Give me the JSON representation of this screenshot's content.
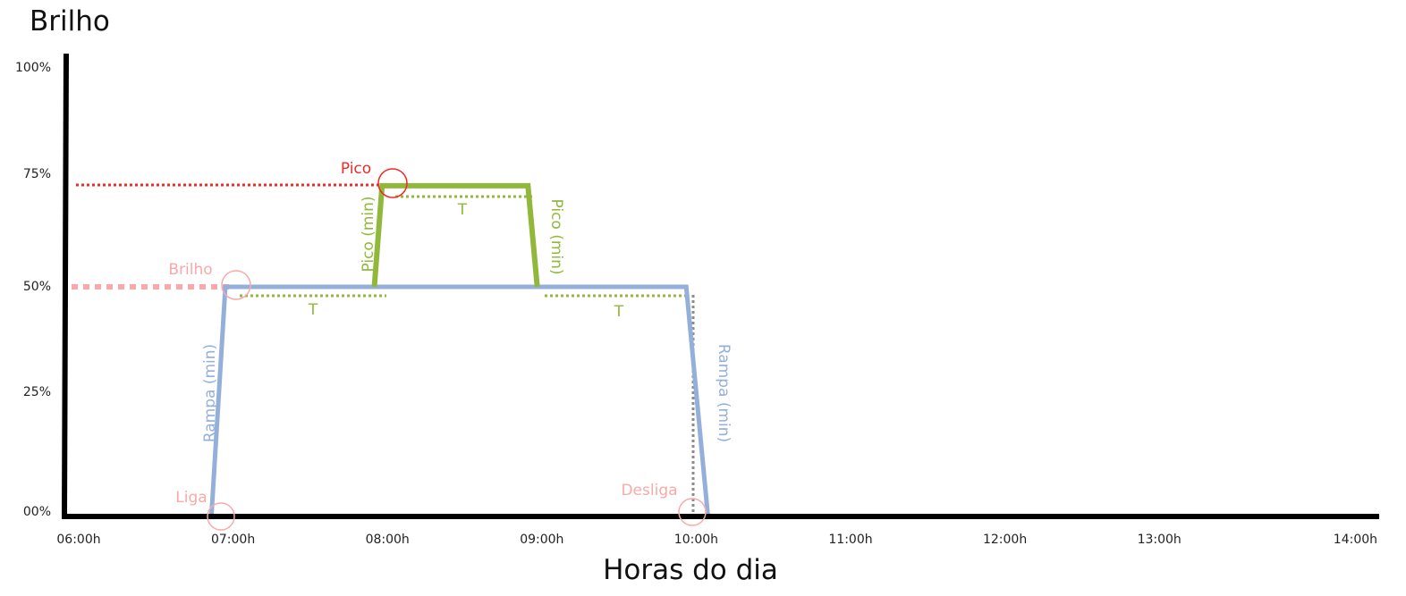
{
  "chart_data": {
    "type": "line",
    "title": "Brilho",
    "xlabel": "Horas do dia",
    "ylabel": "Brilho",
    "x_ticks": [
      "06:00h",
      "07:00h",
      "08:00h",
      "09:00h",
      "10:00h",
      "11:00h",
      "12:00h",
      "13:00h",
      "14:00h"
    ],
    "y_ticks": [
      "100%",
      "75%",
      "50%",
      "25%",
      "00%"
    ],
    "xlim": [
      6,
      14.3
    ],
    "ylim": [
      0,
      100
    ],
    "series": [
      {
        "name": "Rampa",
        "color": "#94b0da",
        "x": [
          6.93,
          7.02,
          9.99,
          10.13
        ],
        "y": [
          0,
          50,
          50,
          0
        ]
      },
      {
        "name": "Pico",
        "color": "#92b83b",
        "x": [
          7.98,
          8.03,
          8.97,
          9.03
        ],
        "y": [
          50,
          72,
          72,
          50
        ]
      }
    ],
    "annotations": {
      "pico": "Pico",
      "brilho": "Brilho",
      "liga": "Liga",
      "desliga": "Desliga",
      "pico_min_up": "Pico (min)",
      "pico_min_down": "Pico (min)",
      "rampa_min_up": "Rampa (min)",
      "rampa_min_down": "Rampa (min)",
      "t1": "T",
      "t2": "T",
      "t3": "T"
    },
    "colors": {
      "pico": "#ee2a2a",
      "brilho": "#f9a9a9",
      "green": "#92b83b",
      "blue": "#94b0da",
      "gray": "#8c8c8c"
    }
  }
}
